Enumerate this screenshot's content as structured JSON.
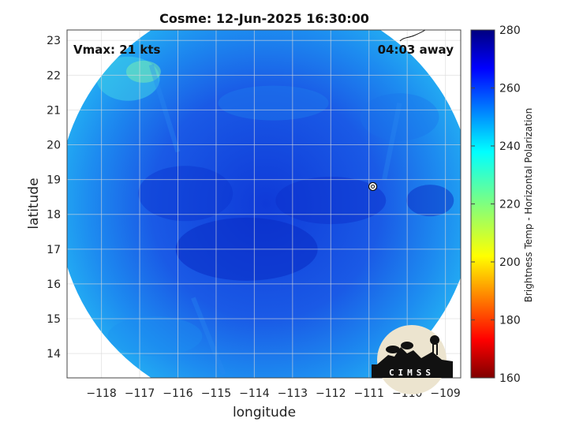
{
  "chart_data": {
    "type": "heatmap",
    "title": "Cosme: 12-Jun-2025 16:30:00",
    "xlabel": "longitude",
    "ylabel": "latitude",
    "xlim": [
      -118.9,
      -108.6
    ],
    "ylim": [
      13.3,
      23.3
    ],
    "x_ticks": [
      -118,
      -117,
      -116,
      -115,
      -114,
      -113,
      -112,
      -111,
      -110,
      -109
    ],
    "y_ticks": [
      14,
      15,
      16,
      17,
      18,
      19,
      20,
      21,
      22,
      23
    ],
    "grid": true,
    "annotations": {
      "vmax": "Vmax: 21 kts",
      "time_away": "04:03 away"
    },
    "storm_center": {
      "lon": -110.9,
      "lat": 18.8
    },
    "swath": {
      "center_lon": -113.7,
      "center_lat": 18.3,
      "radius_deg": 5.45
    },
    "colorbar": {
      "label": "Brightness Temp - Horizontal Polarization",
      "range": [
        160,
        280
      ],
      "ticks": [
        160,
        180,
        200,
        220,
        240,
        260,
        280
      ],
      "colormap": "jet"
    },
    "field_summary": {
      "typical": 252,
      "min_cold_core_region": 266,
      "max_warm_edge_nw": 238
    }
  },
  "logo": {
    "text": "CIMSS"
  },
  "colors": {
    "background": "#ffffff",
    "grid": "#d9d9d9",
    "axis": "#444444"
  }
}
